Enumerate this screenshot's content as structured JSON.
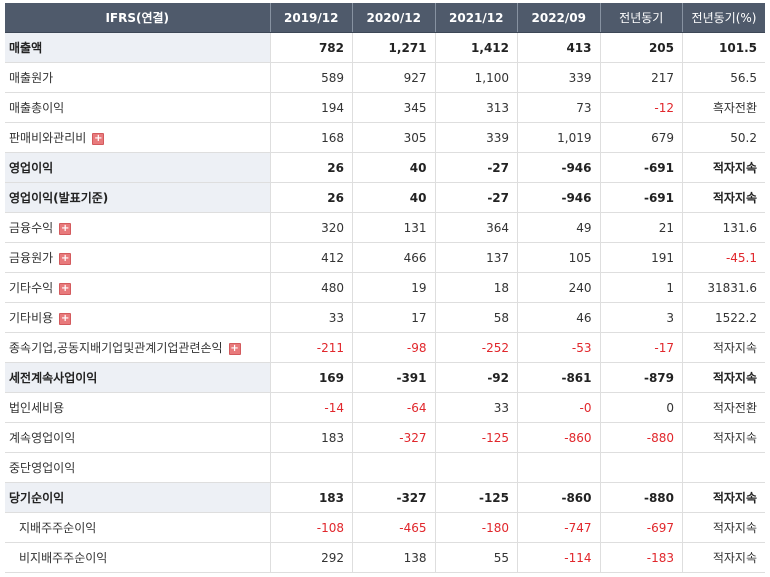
{
  "header": [
    "IFRS(연결)",
    "2019/12",
    "2020/12",
    "2021/12",
    "2022/09",
    "전년동기",
    "전년동기(%)"
  ],
  "rows": [
    {
      "label": "매출액",
      "values": [
        "782",
        "1,271",
        "1,412",
        "413",
        "205",
        "101.5"
      ],
      "major": true,
      "expand": false,
      "indent": false
    },
    {
      "label": "매출원가",
      "values": [
        "589",
        "927",
        "1,100",
        "339",
        "217",
        "56.5"
      ],
      "major": false,
      "expand": false,
      "indent": false
    },
    {
      "label": "매출총이익",
      "values": [
        "194",
        "345",
        "313",
        "73",
        "-12",
        "흑자전환"
      ],
      "major": false,
      "expand": false,
      "indent": false
    },
    {
      "label": "판매비와관리비",
      "values": [
        "168",
        "305",
        "339",
        "1,019",
        "679",
        "50.2"
      ],
      "major": false,
      "expand": true,
      "indent": false
    },
    {
      "label": "영업이익",
      "values": [
        "26",
        "40",
        "-27",
        "-946",
        "-691",
        "적자지속"
      ],
      "major": true,
      "expand": false,
      "indent": false
    },
    {
      "label": "영업이익(발표기준)",
      "values": [
        "26",
        "40",
        "-27",
        "-946",
        "-691",
        "적자지속"
      ],
      "major": true,
      "expand": false,
      "indent": false
    },
    {
      "label": "금융수익",
      "values": [
        "320",
        "131",
        "364",
        "49",
        "21",
        "131.6"
      ],
      "major": false,
      "expand": true,
      "indent": false
    },
    {
      "label": "금융원가",
      "values": [
        "412",
        "466",
        "137",
        "105",
        "191",
        "-45.1"
      ],
      "major": false,
      "expand": true,
      "indent": false
    },
    {
      "label": "기타수익",
      "values": [
        "480",
        "19",
        "18",
        "240",
        "1",
        "31831.6"
      ],
      "major": false,
      "expand": true,
      "indent": false
    },
    {
      "label": "기타비용",
      "values": [
        "33",
        "17",
        "58",
        "46",
        "3",
        "1522.2"
      ],
      "major": false,
      "expand": true,
      "indent": false
    },
    {
      "label": "종속기업,공동지배기업및관계기업관련손익",
      "values": [
        "-211",
        "-98",
        "-252",
        "-53",
        "-17",
        "적자지속"
      ],
      "major": false,
      "expand": true,
      "indent": false
    },
    {
      "label": "세전계속사업이익",
      "values": [
        "169",
        "-391",
        "-92",
        "-861",
        "-879",
        "적자지속"
      ],
      "major": true,
      "expand": false,
      "indent": false
    },
    {
      "label": "법인세비용",
      "values": [
        "-14",
        "-64",
        "33",
        "-0",
        "0",
        "적자전환"
      ],
      "major": false,
      "expand": false,
      "indent": false
    },
    {
      "label": "계속영업이익",
      "values": [
        "183",
        "-327",
        "-125",
        "-860",
        "-880",
        "적자지속"
      ],
      "major": false,
      "expand": false,
      "indent": false
    },
    {
      "label": "중단영업이익",
      "values": [
        "",
        "",
        "",
        "",
        "",
        ""
      ],
      "major": false,
      "expand": false,
      "indent": false
    },
    {
      "label": "당기순이익",
      "values": [
        "183",
        "-327",
        "-125",
        "-860",
        "-880",
        "적자지속"
      ],
      "major": true,
      "expand": false,
      "indent": false
    },
    {
      "label": "지배주주순이익",
      "values": [
        "-108",
        "-465",
        "-180",
        "-747",
        "-697",
        "적자지속"
      ],
      "major": false,
      "expand": false,
      "indent": true
    },
    {
      "label": "비지배주주순이익",
      "values": [
        "292",
        "138",
        "55",
        "-114",
        "-183",
        "적자지속"
      ],
      "major": false,
      "expand": false,
      "indent": true
    }
  ],
  "colors": {
    "header_bg": "#4f5a6b",
    "major_bg": "#edf0f5",
    "negative": "#e1272c",
    "expand_icon": "#e87a7c"
  }
}
